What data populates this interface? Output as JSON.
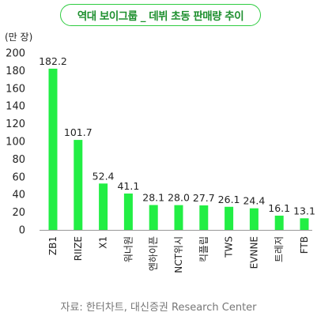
{
  "title": "역대 보이그룹 _ 데뷔 초동 판매량 추이",
  "source": "자료: 한터차트, 대신증권 Research Center",
  "colors": {
    "bar": "#22ee44",
    "title_border": "#2ecc40",
    "title_text": "#1d8f2e"
  },
  "chart_data": {
    "type": "bar",
    "title": "역대 보이그룹 _ 데뷔 초동 판매량 추이",
    "xlabel": "",
    "ylabel": "(만 장)",
    "ylim": [
      0,
      200
    ],
    "yticks": [
      0,
      20,
      40,
      60,
      80,
      100,
      120,
      140,
      160,
      180,
      200
    ],
    "categories": [
      "ZB1",
      "RIIZE",
      "X1",
      "워너원",
      "엔하이픈",
      "NCT위시",
      "킥플립",
      "TWS",
      "EVNNE",
      "트레저",
      "FTB"
    ],
    "values": [
      182.2,
      101.7,
      52.4,
      41.1,
      28.1,
      28.0,
      27.7,
      26.1,
      24.4,
      16.1,
      13.1
    ],
    "value_labels": [
      "182.2",
      "101.7",
      "52.4",
      "41.1",
      "28.1",
      "28.0",
      "27.7",
      "26.1",
      "24.4",
      "16.1",
      "13.1"
    ],
    "grid": false,
    "legend": "none"
  }
}
